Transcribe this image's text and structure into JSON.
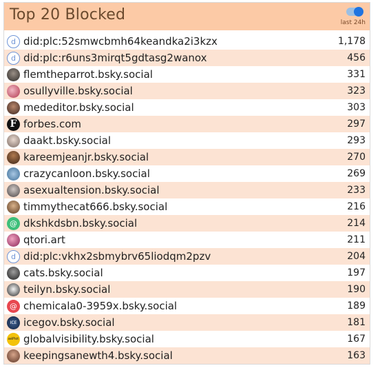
{
  "header": {
    "title": "Top 20 Blocked",
    "toggle_label": "last 24h",
    "toggle_on": true
  },
  "colors": {
    "header_bg": "#fccaa6",
    "alt_row_bg": "#fce3d3",
    "toggle_accent": "#1f74e0"
  },
  "rows": [
    {
      "name": "did:plc:52smwcbmh64keandka2i3kzx",
      "count": "1,178",
      "avatar": "did-icon"
    },
    {
      "name": "did:plc:r6uns3mirqt5gdtasg2wanox",
      "count": "456",
      "avatar": "did-icon"
    },
    {
      "name": "flemtheparrot.bsky.social",
      "count": "331",
      "avatar": "user-avatar"
    },
    {
      "name": "osullyville.bsky.social",
      "count": "323",
      "avatar": "user-avatar"
    },
    {
      "name": "mededitor.bsky.social",
      "count": "303",
      "avatar": "user-avatar"
    },
    {
      "name": "forbes.com",
      "count": "297",
      "avatar": "forbes-logo"
    },
    {
      "name": "daakt.bsky.social",
      "count": "293",
      "avatar": "user-avatar"
    },
    {
      "name": "kareemjeanjr.bsky.social",
      "count": "270",
      "avatar": "user-avatar"
    },
    {
      "name": "crazycanloon.bsky.social",
      "count": "269",
      "avatar": "user-avatar"
    },
    {
      "name": "asexualtension.bsky.social",
      "count": "233",
      "avatar": "user-avatar"
    },
    {
      "name": "timmythecat666.bsky.social",
      "count": "216",
      "avatar": "user-avatar"
    },
    {
      "name": "dkshkdsbn.bsky.social",
      "count": "214",
      "avatar": "at-icon"
    },
    {
      "name": "qtori.art",
      "count": "211",
      "avatar": "user-avatar"
    },
    {
      "name": "did:plc:vkhx2sbmybrv65liodqm2pzv",
      "count": "204",
      "avatar": "did-icon"
    },
    {
      "name": "cats.bsky.social",
      "count": "197",
      "avatar": "user-avatar"
    },
    {
      "name": "teilyn.bsky.social",
      "count": "190",
      "avatar": "user-avatar"
    },
    {
      "name": "chemicala0-3959x.bsky.social",
      "count": "189",
      "avatar": "at-icon"
    },
    {
      "name": "icegov.bsky.social",
      "count": "181",
      "avatar": "ice-seal-logo"
    },
    {
      "name": "globalvisibility.bsky.social",
      "count": "167",
      "avatar": "user-avatar"
    },
    {
      "name": "keepingsanewth4.bsky.social",
      "count": "163",
      "avatar": "user-avatar"
    }
  ]
}
